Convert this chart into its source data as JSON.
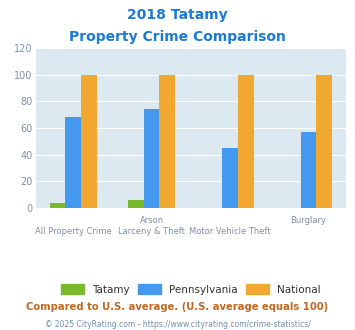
{
  "title_line1": "2018 Tatamy",
  "title_line2": "Property Crime Comparison",
  "cat_labels_top": [
    "All Property Crime",
    "Arson",
    "Motor Vehicle Theft",
    "Burglary"
  ],
  "cat_labels_bottom": [
    "",
    "Larceny & Theft",
    "",
    ""
  ],
  "group_tatamy": [
    4,
    6,
    0,
    0
  ],
  "group_pennsylvania": [
    68,
    74,
    45,
    57
  ],
  "group_national": [
    100,
    100,
    100,
    100
  ],
  "colors": {
    "Tatamy": "#7aba2a",
    "Pennsylvania": "#4499ee",
    "National": "#f0a830"
  },
  "ylim": [
    0,
    120
  ],
  "yticks": [
    0,
    20,
    40,
    60,
    80,
    100,
    120
  ],
  "title_color": "#1a7ad4",
  "axis_bg_color": "#dce9f0",
  "fig_bg_color": "#ffffff",
  "footer_text": "Compared to U.S. average. (U.S. average equals 100)",
  "copyright_text": "© 2025 CityRating.com - https://www.cityrating.com/crime-statistics/",
  "footer_color": "#c06820",
  "copyright_color": "#7090b0",
  "tick_label_color": "#8090a8",
  "grid_color": "#ffffff",
  "bar_width": 0.2,
  "legend_text_color": "#333333"
}
